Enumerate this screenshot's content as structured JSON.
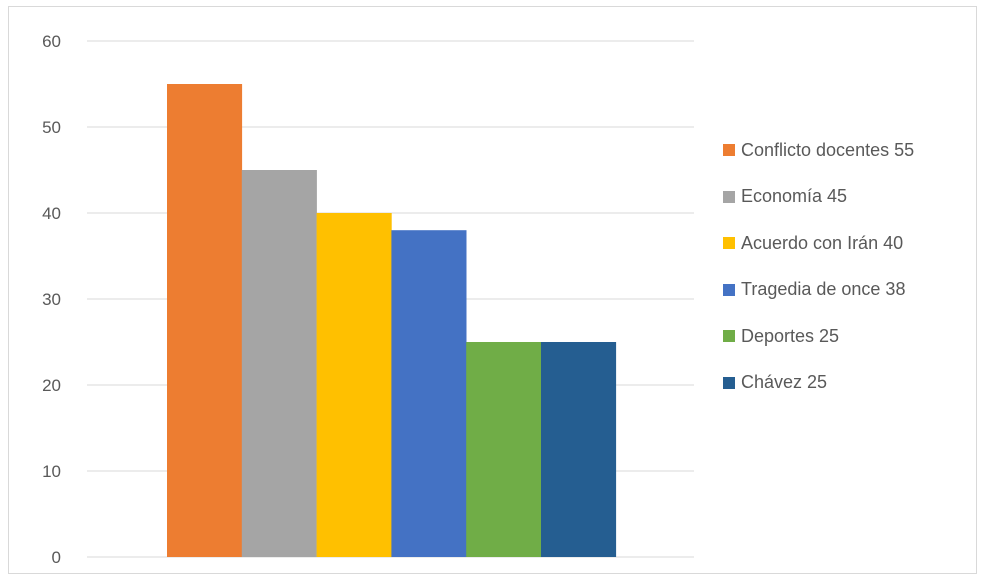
{
  "chart_data": {
    "type": "bar",
    "categories": [
      ""
    ],
    "series": [
      {
        "name": "Conflicto docentes 55",
        "values": [
          55
        ],
        "color": "#ED7D31"
      },
      {
        "name": "Economía 45",
        "values": [
          45
        ],
        "color": "#A5A5A5"
      },
      {
        "name": "Acuerdo con Irán 40",
        "values": [
          40
        ],
        "color": "#FFC000"
      },
      {
        "name": "Tragedia de once 38",
        "values": [
          38
        ],
        "color": "#4472C4"
      },
      {
        "name": "Deportes 25",
        "values": [
          25
        ],
        "color": "#70AD47"
      },
      {
        "name": "Chávez 25",
        "values": [
          25
        ],
        "color": "#255E91"
      }
    ],
    "yticks": [
      "0",
      "10",
      "20",
      "30",
      "40",
      "50",
      "60"
    ],
    "ylim": [
      0,
      60
    ],
    "grid": true,
    "legend_position": "right",
    "title": "",
    "xlabel": "",
    "ylabel": ""
  }
}
